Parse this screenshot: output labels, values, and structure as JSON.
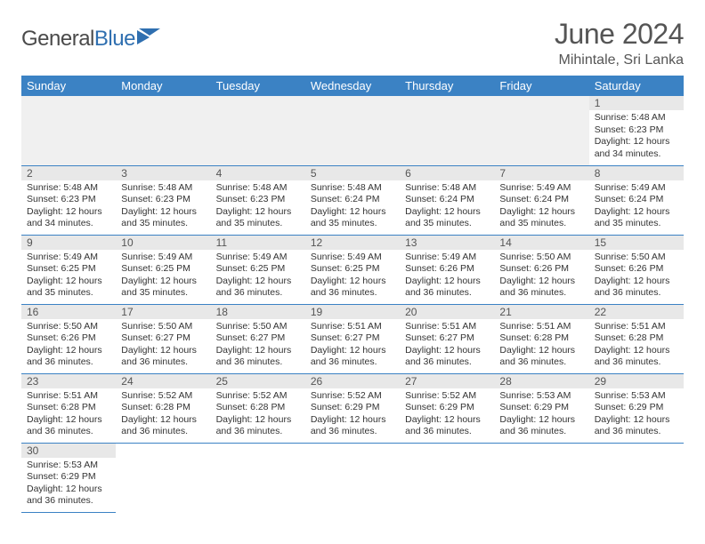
{
  "logo": {
    "word1": "General",
    "word2": "Blue"
  },
  "header": {
    "title": "June 2024",
    "location": "Mihintale, Sri Lanka"
  },
  "colors": {
    "header_bg": "#3b82c4",
    "header_fg": "#ffffff",
    "daynum_bg": "#e8e8e8",
    "cell_border": "#3b82c4",
    "empty_bg": "#f0f0f0",
    "text": "#333333",
    "title_text": "#555555"
  },
  "weekdays": [
    "Sunday",
    "Monday",
    "Tuesday",
    "Wednesday",
    "Thursday",
    "Friday",
    "Saturday"
  ],
  "layout": {
    "first_day_column": 6,
    "days_in_month": 30
  },
  "days": {
    "1": {
      "sunrise": "5:48 AM",
      "sunset": "6:23 PM",
      "daylight": "12 hours and 34 minutes."
    },
    "2": {
      "sunrise": "5:48 AM",
      "sunset": "6:23 PM",
      "daylight": "12 hours and 34 minutes."
    },
    "3": {
      "sunrise": "5:48 AM",
      "sunset": "6:23 PM",
      "daylight": "12 hours and 35 minutes."
    },
    "4": {
      "sunrise": "5:48 AM",
      "sunset": "6:23 PM",
      "daylight": "12 hours and 35 minutes."
    },
    "5": {
      "sunrise": "5:48 AM",
      "sunset": "6:24 PM",
      "daylight": "12 hours and 35 minutes."
    },
    "6": {
      "sunrise": "5:48 AM",
      "sunset": "6:24 PM",
      "daylight": "12 hours and 35 minutes."
    },
    "7": {
      "sunrise": "5:49 AM",
      "sunset": "6:24 PM",
      "daylight": "12 hours and 35 minutes."
    },
    "8": {
      "sunrise": "5:49 AM",
      "sunset": "6:24 PM",
      "daylight": "12 hours and 35 minutes."
    },
    "9": {
      "sunrise": "5:49 AM",
      "sunset": "6:25 PM",
      "daylight": "12 hours and 35 minutes."
    },
    "10": {
      "sunrise": "5:49 AM",
      "sunset": "6:25 PM",
      "daylight": "12 hours and 35 minutes."
    },
    "11": {
      "sunrise": "5:49 AM",
      "sunset": "6:25 PM",
      "daylight": "12 hours and 36 minutes."
    },
    "12": {
      "sunrise": "5:49 AM",
      "sunset": "6:25 PM",
      "daylight": "12 hours and 36 minutes."
    },
    "13": {
      "sunrise": "5:49 AM",
      "sunset": "6:26 PM",
      "daylight": "12 hours and 36 minutes."
    },
    "14": {
      "sunrise": "5:50 AM",
      "sunset": "6:26 PM",
      "daylight": "12 hours and 36 minutes."
    },
    "15": {
      "sunrise": "5:50 AM",
      "sunset": "6:26 PM",
      "daylight": "12 hours and 36 minutes."
    },
    "16": {
      "sunrise": "5:50 AM",
      "sunset": "6:26 PM",
      "daylight": "12 hours and 36 minutes."
    },
    "17": {
      "sunrise": "5:50 AM",
      "sunset": "6:27 PM",
      "daylight": "12 hours and 36 minutes."
    },
    "18": {
      "sunrise": "5:50 AM",
      "sunset": "6:27 PM",
      "daylight": "12 hours and 36 minutes."
    },
    "19": {
      "sunrise": "5:51 AM",
      "sunset": "6:27 PM",
      "daylight": "12 hours and 36 minutes."
    },
    "20": {
      "sunrise": "5:51 AM",
      "sunset": "6:27 PM",
      "daylight": "12 hours and 36 minutes."
    },
    "21": {
      "sunrise": "5:51 AM",
      "sunset": "6:28 PM",
      "daylight": "12 hours and 36 minutes."
    },
    "22": {
      "sunrise": "5:51 AM",
      "sunset": "6:28 PM",
      "daylight": "12 hours and 36 minutes."
    },
    "23": {
      "sunrise": "5:51 AM",
      "sunset": "6:28 PM",
      "daylight": "12 hours and 36 minutes."
    },
    "24": {
      "sunrise": "5:52 AM",
      "sunset": "6:28 PM",
      "daylight": "12 hours and 36 minutes."
    },
    "25": {
      "sunrise": "5:52 AM",
      "sunset": "6:28 PM",
      "daylight": "12 hours and 36 minutes."
    },
    "26": {
      "sunrise": "5:52 AM",
      "sunset": "6:29 PM",
      "daylight": "12 hours and 36 minutes."
    },
    "27": {
      "sunrise": "5:52 AM",
      "sunset": "6:29 PM",
      "daylight": "12 hours and 36 minutes."
    },
    "28": {
      "sunrise": "5:53 AM",
      "sunset": "6:29 PM",
      "daylight": "12 hours and 36 minutes."
    },
    "29": {
      "sunrise": "5:53 AM",
      "sunset": "6:29 PM",
      "daylight": "12 hours and 36 minutes."
    },
    "30": {
      "sunrise": "5:53 AM",
      "sunset": "6:29 PM",
      "daylight": "12 hours and 36 minutes."
    }
  },
  "labels": {
    "sunrise": "Sunrise:",
    "sunset": "Sunset:",
    "daylight": "Daylight:"
  }
}
